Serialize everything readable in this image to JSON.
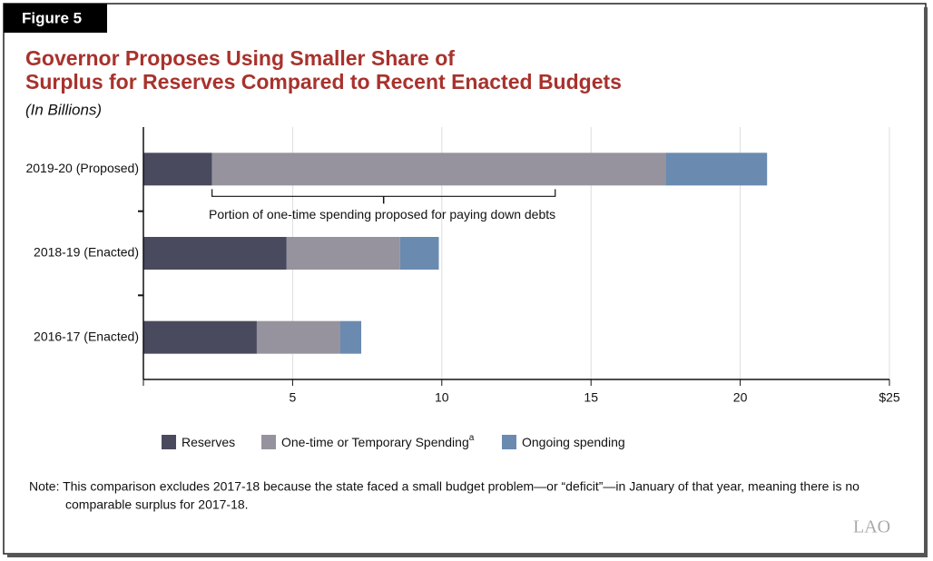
{
  "figure_label": "Figure 5",
  "chart_data": {
    "type": "stacked-bar-horizontal",
    "title": [
      "Governor Proposes Using Smaller Share of",
      "Surplus for Reserves Compared to Recent Enacted Budgets"
    ],
    "subtitle": "(In Billions)",
    "categories": [
      "2019-20 (Proposed)",
      "2018-19 (Enacted)",
      "2016-17 (Enacted)"
    ],
    "series": [
      {
        "name": "Reserves",
        "color": "#4a4a5e",
        "values": [
          2.3,
          4.8,
          3.8
        ]
      },
      {
        "name": "One-time or Temporary Spending",
        "name_superscript": "a",
        "color": "#96939e",
        "values": [
          15.2,
          3.8,
          2.8
        ]
      },
      {
        "name": "Ongoing spending",
        "color": "#6a8ab0",
        "values": [
          3.4,
          1.3,
          0.7
        ]
      }
    ],
    "xlim": [
      0,
      25
    ],
    "xticks": [
      5,
      10,
      15,
      20,
      {
        "value": 25,
        "label": "$25"
      }
    ],
    "grid": true,
    "annotation": {
      "text": "Portion of one-time spending proposed for paying down debts",
      "from": 2.3,
      "to": 13.8
    },
    "note": [
      "Note: This comparison excludes 2017-18 because the state faced a small budget problem—or “deficit”—in January of that year, meaning there is no",
      "comparable surplus for 2017-18."
    ]
  },
  "logo": "LAO"
}
